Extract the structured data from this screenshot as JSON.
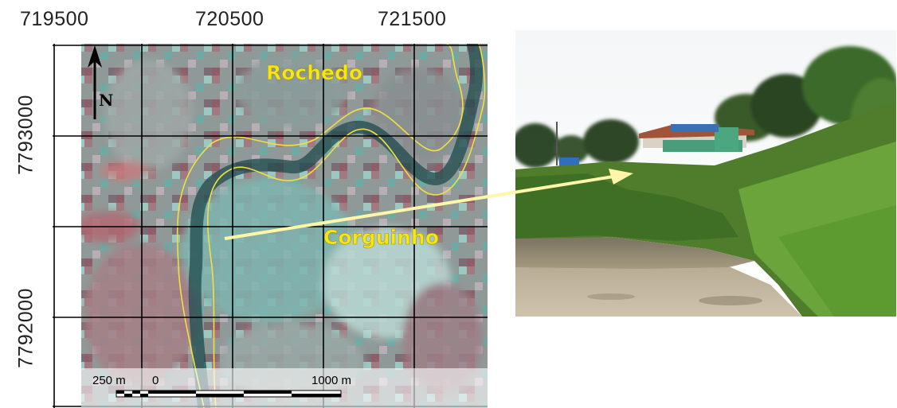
{
  "map": {
    "easting_labels": [
      "719500",
      "720500",
      "721500"
    ],
    "northing_labels": [
      "7793000",
      "7792000"
    ],
    "north_label": "N",
    "place_labels": {
      "rochedo": "Rochedo",
      "corguinho": "Corguinho"
    },
    "scale_bar": {
      "left_label": "250 m",
      "zero_label": "0",
      "right_label": "1000 m"
    },
    "colors": {
      "place_label": "#f5e61c",
      "river_outline": "#f0e040",
      "grid": "#000000",
      "arrow": "#fff6a8"
    }
  },
  "photo": {
    "subject": "riverbank of Corguinho with buildings on hilltop"
  }
}
